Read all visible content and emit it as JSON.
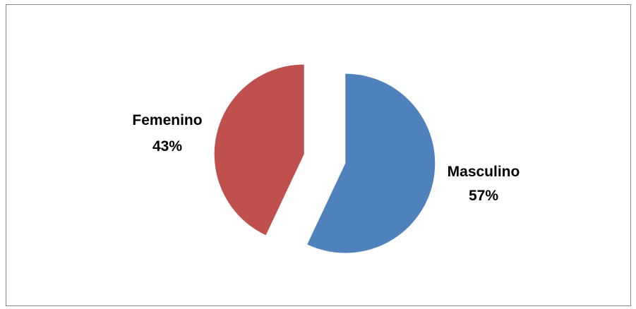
{
  "chart_data": {
    "type": "pie",
    "exploded": true,
    "slices": [
      {
        "label": "Masculino",
        "percent_label": "57%",
        "value": 57,
        "color": "#4F81BD"
      },
      {
        "label": "Femenino",
        "percent_label": "43%",
        "value": 43,
        "color": "#C0504D"
      }
    ],
    "legend": "none",
    "data_labels": "category name and percentage"
  }
}
